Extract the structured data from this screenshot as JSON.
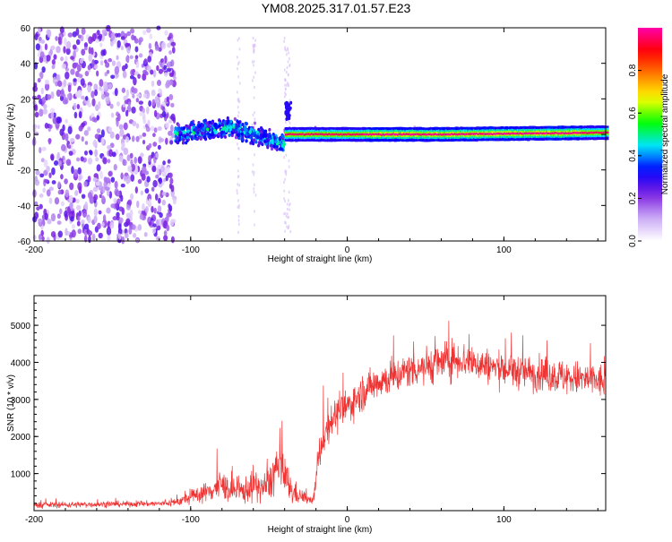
{
  "figure": {
    "title": "YM08.2025.317.01.57.E23"
  },
  "chart_data": [
    {
      "type": "heatmap",
      "xlabel": "Height of straight line (km)",
      "ylabel": "Frequency (Hz)",
      "xlim": [
        -200,
        165
      ],
      "ylim": [
        -60,
        60
      ],
      "xticks": [
        -200,
        -100,
        0,
        100
      ],
      "yticks": [
        -60,
        -40,
        -20,
        0,
        20,
        40,
        60
      ],
      "colorbar": {
        "label": "Normalized spectral amplitude",
        "range": [
          0.0,
          1.0
        ],
        "ticks": [
          0.0,
          0.2,
          0.4,
          0.6,
          0.8
        ],
        "colors": [
          "#ffffff",
          "#c9a8f5",
          "#7b1fe0",
          "#0000ff",
          "#00e5ff",
          "#00ff00",
          "#ffff00",
          "#ff8000",
          "#ff0000",
          "#ff00aa"
        ]
      },
      "regions": [
        {
          "name": "noise",
          "x": [
            -200,
            -110
          ],
          "freq_spread": 60,
          "amplitude": 0.15
        },
        {
          "name": "transition",
          "x": [
            -110,
            -40
          ],
          "freq_center": [
            0,
            4,
            -5
          ],
          "freq_spread": 8,
          "amplitude": 0.45
        },
        {
          "name": "signal",
          "x": [
            -40,
            165
          ],
          "freq_center": [
            0,
            0,
            1
          ],
          "freq_spread": 2,
          "amplitude": 1.0
        }
      ]
    },
    {
      "type": "line",
      "xlabel": "Height of straight line (km)",
      "ylabel": "SNR (10 * v/v)",
      "xlim": [
        -200,
        165
      ],
      "ylim": [
        0,
        5800
      ],
      "xticks": [
        -200,
        -100,
        0,
        100
      ],
      "yticks": [
        1000,
        2000,
        3000,
        4000,
        5000
      ],
      "series": [
        {
          "name": "SNR",
          "color": "#ee3333",
          "x": [
            -200,
            -180,
            -160,
            -140,
            -120,
            -110,
            -100,
            -95,
            -90,
            -85,
            -80,
            -75,
            -70,
            -65,
            -60,
            -55,
            -50,
            -45,
            -40,
            -35,
            -30,
            -25,
            -22,
            -20,
            -18,
            -15,
            -10,
            -5,
            0,
            5,
            10,
            20,
            30,
            40,
            50,
            60,
            70,
            80,
            90,
            100,
            110,
            120,
            130,
            140,
            150,
            160,
            165
          ],
          "mean": [
            150,
            160,
            170,
            180,
            190,
            220,
            350,
            450,
            500,
            600,
            700,
            550,
            500,
            550,
            700,
            600,
            700,
            1200,
            900,
            500,
            400,
            300,
            250,
            800,
            1500,
            2000,
            2500,
            2600,
            2800,
            3000,
            3200,
            3500,
            3600,
            3800,
            3900,
            4000,
            4100,
            4000,
            3900,
            3800,
            3750,
            3700,
            3650,
            3600,
            3550,
            3500,
            3450
          ],
          "spread": [
            150,
            150,
            150,
            150,
            150,
            200,
            350,
            450,
            500,
            700,
            800,
            600,
            600,
            700,
            900,
            700,
            900,
            1300,
            1100,
            700,
            400,
            200,
            150,
            700,
            900,
            900,
            900,
            900,
            900,
            900,
            900,
            900,
            900,
            900,
            1000,
            1000,
            1000,
            900,
            900,
            900,
            900,
            900,
            900,
            900,
            900,
            900,
            900
          ]
        }
      ]
    }
  ]
}
